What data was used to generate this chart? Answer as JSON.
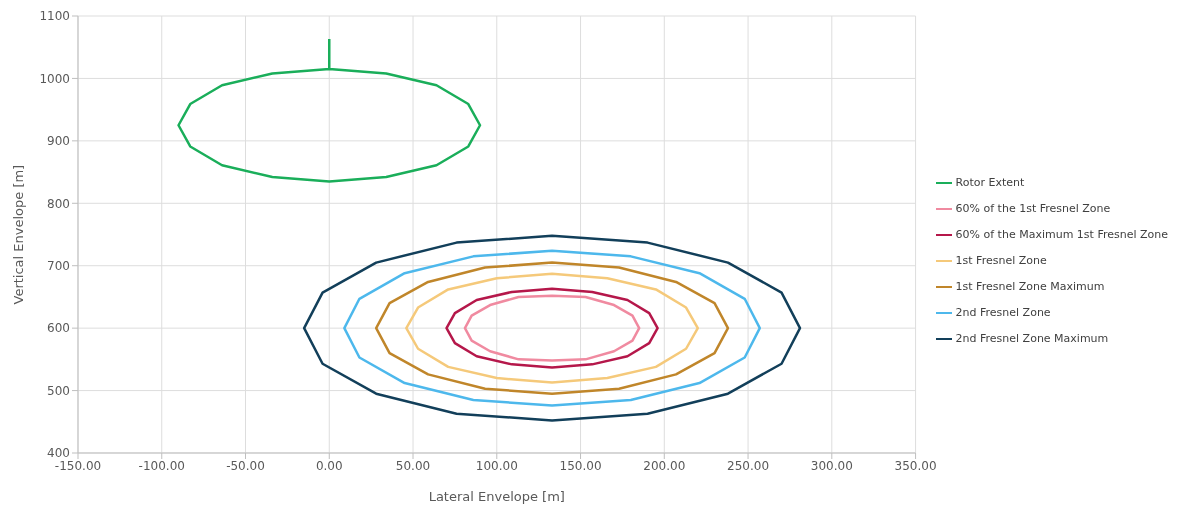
{
  "chart_data": {
    "type": "line",
    "xlabel": "Lateral Envelope [m]",
    "ylabel": "Vertical Envelope [m]",
    "xlim": [
      -150,
      350
    ],
    "ylim": [
      400,
      1100
    ],
    "xticks": [
      {
        "value": -150,
        "label": "-150.00"
      },
      {
        "value": -100,
        "label": "-100.00"
      },
      {
        "value": -50,
        "label": "-50.00"
      },
      {
        "value": 0,
        "label": "0.00"
      },
      {
        "value": 50,
        "label": "50.00"
      },
      {
        "value": 100,
        "label": "100.00"
      },
      {
        "value": 150,
        "label": "150.00"
      },
      {
        "value": 200,
        "label": "200.00"
      },
      {
        "value": 250,
        "label": "250.00"
      },
      {
        "value": 300,
        "label": "300.00"
      },
      {
        "value": 350,
        "label": "350.00"
      }
    ],
    "yticks": [
      400,
      500,
      600,
      700,
      800,
      900,
      1000,
      1100
    ],
    "grid": true,
    "legend": "right",
    "marker": "none",
    "line_style": "solid",
    "series": [
      {
        "name": "Rotor Extent",
        "color": "#1aae5a",
        "x": [
          0,
          0,
          34,
          64,
          83,
          90,
          83,
          64,
          34,
          0,
          -34,
          -64,
          -83,
          -90,
          -83,
          -64,
          -34,
          0
        ],
        "values": [
          1063,
          1015,
          1008,
          989,
          959,
          925,
          891,
          861,
          842,
          835,
          842,
          861,
          891,
          925,
          959,
          989,
          1008,
          1015
        ]
      },
      {
        "name": "60% of the 1st Fresnel Zone",
        "color": "#f08aa0",
        "x": [
          185,
          181,
          170,
          153,
          133,
          113,
          96,
          85,
          81,
          85,
          96,
          113,
          133,
          153,
          170,
          181,
          185,
          181
        ],
        "values": [
          600,
          620,
          637,
          650,
          652,
          650,
          637,
          620,
          600,
          580,
          563,
          550,
          548,
          550,
          563,
          580,
          600,
          620
        ]
      },
      {
        "name": "60% of the Maximum 1st Fresnel Zone",
        "color": "#b5174a",
        "x": [
          196,
          191,
          178,
          157,
          133,
          109,
          88,
          75,
          70,
          75,
          88,
          109,
          133,
          157,
          178,
          191,
          196,
          191
        ],
        "values": [
          600,
          624,
          645,
          658,
          663,
          658,
          645,
          624,
          600,
          576,
          555,
          542,
          537,
          542,
          555,
          576,
          600,
          624
        ]
      },
      {
        "name": "1st Fresnel Zone",
        "color": "#f5c97a",
        "x": [
          220,
          213,
          195,
          166,
          133,
          100,
          71,
          53,
          46,
          53,
          71,
          100,
          133,
          166,
          195,
          213,
          220,
          213
        ],
        "values": [
          600,
          633,
          662,
          680,
          687,
          680,
          662,
          633,
          600,
          567,
          538,
          520,
          513,
          520,
          538,
          567,
          600,
          633
        ]
      },
      {
        "name": "1st Fresnel Zone Maximum",
        "color": "#c0862a",
        "x": [
          238,
          230,
          207,
          173,
          133,
          93,
          59,
          36,
          28,
          36,
          59,
          93,
          133,
          173,
          207,
          230,
          238,
          230
        ],
        "values": [
          600,
          640,
          674,
          697,
          705,
          697,
          674,
          640,
          600,
          560,
          526,
          503,
          495,
          503,
          526,
          560,
          600,
          640
        ]
      },
      {
        "name": "2nd Fresnel Zone",
        "color": "#4db8ec",
        "x": [
          257,
          248,
          221,
          180,
          133,
          86,
          45,
          18,
          9,
          18,
          45,
          86,
          133,
          180,
          221,
          248,
          257,
          248
        ],
        "values": [
          600,
          647,
          688,
          715,
          724,
          715,
          688,
          647,
          600,
          553,
          512,
          485,
          476,
          485,
          512,
          553,
          600,
          647
        ]
      },
      {
        "name": "2nd Fresnel Zone Maximum",
        "color": "#123f5a",
        "x": [
          281,
          270,
          238,
          190,
          133,
          76,
          28,
          -4,
          -15,
          -4,
          28,
          76,
          133,
          190,
          238,
          270,
          281,
          270
        ],
        "values": [
          600,
          657,
          705,
          737,
          748,
          737,
          705,
          657,
          600,
          543,
          495,
          463,
          452,
          463,
          495,
          543,
          600,
          657
        ]
      }
    ]
  }
}
